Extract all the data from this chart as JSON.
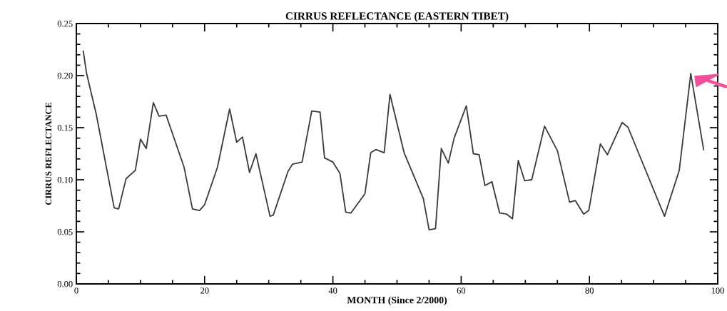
{
  "chart_data": {
    "type": "line",
    "title": "CIRRUS REFLECTANCE (EASTERN TIBET)",
    "xlabel": "MONTH (Since 2/2000)",
    "ylabel": "CIRRUS REFLECTANCE",
    "x": [
      1.08,
      1.6,
      3.1,
      5.9,
      6.6,
      7.75,
      9.2,
      10,
      10.9,
      12,
      12.9,
      14,
      16.8,
      18.1,
      19.2,
      20,
      22,
      23.9,
      25,
      25.9,
      27,
      28,
      30.2,
      30.7,
      33,
      33.7,
      35.2,
      36.7,
      38,
      38.7,
      40,
      41.1,
      42,
      42.8,
      45,
      45.9,
      46.7,
      48,
      48.9,
      51.1,
      54.1,
      55,
      56,
      56.9,
      58,
      58.9,
      60.8,
      61.9,
      62.8,
      63.7,
      64.8,
      66,
      67.1,
      68,
      68.9,
      69.9,
      71,
      73,
      75,
      76.9,
      77.8,
      79.1,
      79.9,
      81.7,
      82.8,
      85.1,
      86,
      91.7,
      94,
      95.8,
      97.8
    ],
    "series": [
      {
        "color": "#3a3a3a",
        "values": [
          0.2235,
          0.202,
          0.163,
          0.073,
          0.072,
          0.101,
          0.109,
          0.139,
          0.13,
          0.174,
          0.161,
          0.162,
          0.112,
          0.072,
          0.0705,
          0.076,
          0.112,
          0.168,
          0.136,
          0.141,
          0.107,
          0.125,
          0.065,
          0.066,
          0.108,
          0.115,
          0.117,
          0.166,
          0.165,
          0.121,
          0.117,
          0.106,
          0.069,
          0.068,
          0.0865,
          0.126,
          0.129,
          0.126,
          0.182,
          0.126,
          0.082,
          0.052,
          0.053,
          0.13,
          0.116,
          0.14,
          0.171,
          0.125,
          0.124,
          0.0945,
          0.098,
          0.068,
          0.067,
          0.0625,
          0.1185,
          0.099,
          0.1,
          0.1515,
          0.128,
          0.0785,
          0.08,
          0.067,
          0.0705,
          0.1345,
          0.124,
          0.155,
          0.1505,
          0.065,
          0.109,
          0.202,
          0.129
        ]
      }
    ],
    "xlim": [
      0,
      100
    ],
    "xticks": [
      0,
      20,
      40,
      60,
      80,
      100
    ],
    "ylim": [
      0,
      0.25
    ],
    "yticks": [
      {
        "value": 0,
        "label": "0.00"
      },
      {
        "value": 0.05,
        "label": "0.05"
      },
      {
        "value": 0.1,
        "label": "0.10"
      },
      {
        "value": 0.15,
        "label": "0.15"
      },
      {
        "value": 0.2,
        "label": "0.20"
      },
      {
        "value": 0.25,
        "label": "0.25"
      }
    ],
    "grid": false,
    "marker": "none",
    "line_style": "solid"
  }
}
